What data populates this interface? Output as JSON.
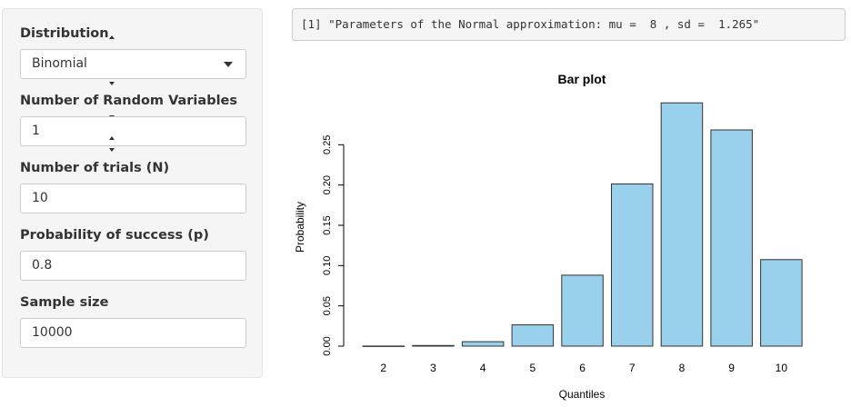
{
  "sidebar": {
    "distribution": {
      "label": "Distribution",
      "value": "Binomial"
    },
    "num_random_vars": {
      "label": "Number of Random Variables",
      "value": "1"
    },
    "num_trials": {
      "label": "Number of trials (N)",
      "value": "10"
    },
    "prob_success": {
      "label": "Probability of success (p)",
      "value": "0.8"
    },
    "sample_size": {
      "label": "Sample size",
      "value": "10000"
    }
  },
  "output": {
    "text": "[1] \"Parameters of the Normal approximation: mu =  8 , sd =  1.265\""
  },
  "colors": {
    "bar_fill": "#99d0ec",
    "bar_stroke": "#333333"
  },
  "chart_data": {
    "type": "bar",
    "title": "Bar plot",
    "xlabel": "Quantiles",
    "ylabel": "Probability",
    "categories": [
      "2",
      "3",
      "4",
      "5",
      "6",
      "7",
      "8",
      "9",
      "10"
    ],
    "values": [
      0.0001,
      0.0008,
      0.0055,
      0.0264,
      0.0881,
      0.2013,
      0.302,
      0.2684,
      0.1074
    ],
    "yticks": [
      "0.00",
      "0.05",
      "0.10",
      "0.15",
      "0.20",
      "0.25"
    ],
    "ylim": [
      0,
      0.3
    ],
    "grid": false
  }
}
